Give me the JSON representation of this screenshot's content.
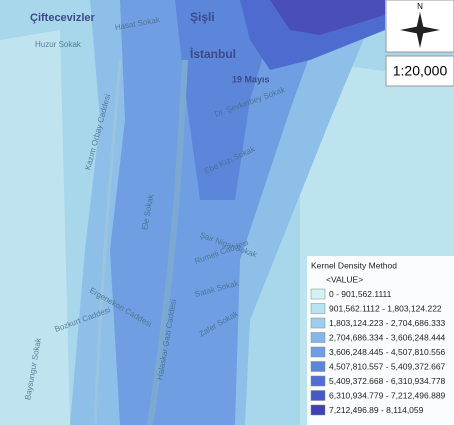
{
  "map": {
    "places": [
      "Çiftecevizler",
      "Şişli",
      "İstanbul",
      "19 Mayıs"
    ],
    "streets": [
      "Huzur Sokak",
      "Hasat Sokak",
      "Dr. Şevketbey Sokak",
      "Ebe Kızı Sokak",
      "Şair Nigar Sokak",
      "Rumeli Caddesi",
      "Satak Sokak",
      "Zafer Sokak",
      "Halaskar Gazi Caddesi",
      "Ergenekon Caddesi",
      "Kazım Orbay Caddesi",
      "Bozkurt Caddesi",
      "Baysungur Sokak",
      "Ele Sokak"
    ],
    "north": "N",
    "scale": "1:20,000",
    "legend": {
      "title": "Kernel Density Method",
      "field": "<VALUE>",
      "classes": [
        {
          "label": "0 - 901,562.1111",
          "color": "#d4f1f6"
        },
        {
          "label": "901,562.1112 - 1,803,124.222",
          "color": "#b6e2f1"
        },
        {
          "label": "1,803,124.223 - 2,704,686.333",
          "color": "#9ccdee"
        },
        {
          "label": "2,704,686.334 - 3,606,248.444",
          "color": "#85b6ea"
        },
        {
          "label": "3,606,248.445 - 4,507,810.556",
          "color": "#6e9de3"
        },
        {
          "label": "4,507,810.557 - 5,409,372.667",
          "color": "#5b86db"
        },
        {
          "label": "5,409,372.668 - 6,310,934.778",
          "color": "#4f6fd2"
        },
        {
          "label": "6,310,934.779 - 7,212,496.889",
          "color": "#4658c6"
        },
        {
          "label": "7,212,496.89 - 8,114,059",
          "color": "#3e40b5"
        }
      ]
    }
  }
}
